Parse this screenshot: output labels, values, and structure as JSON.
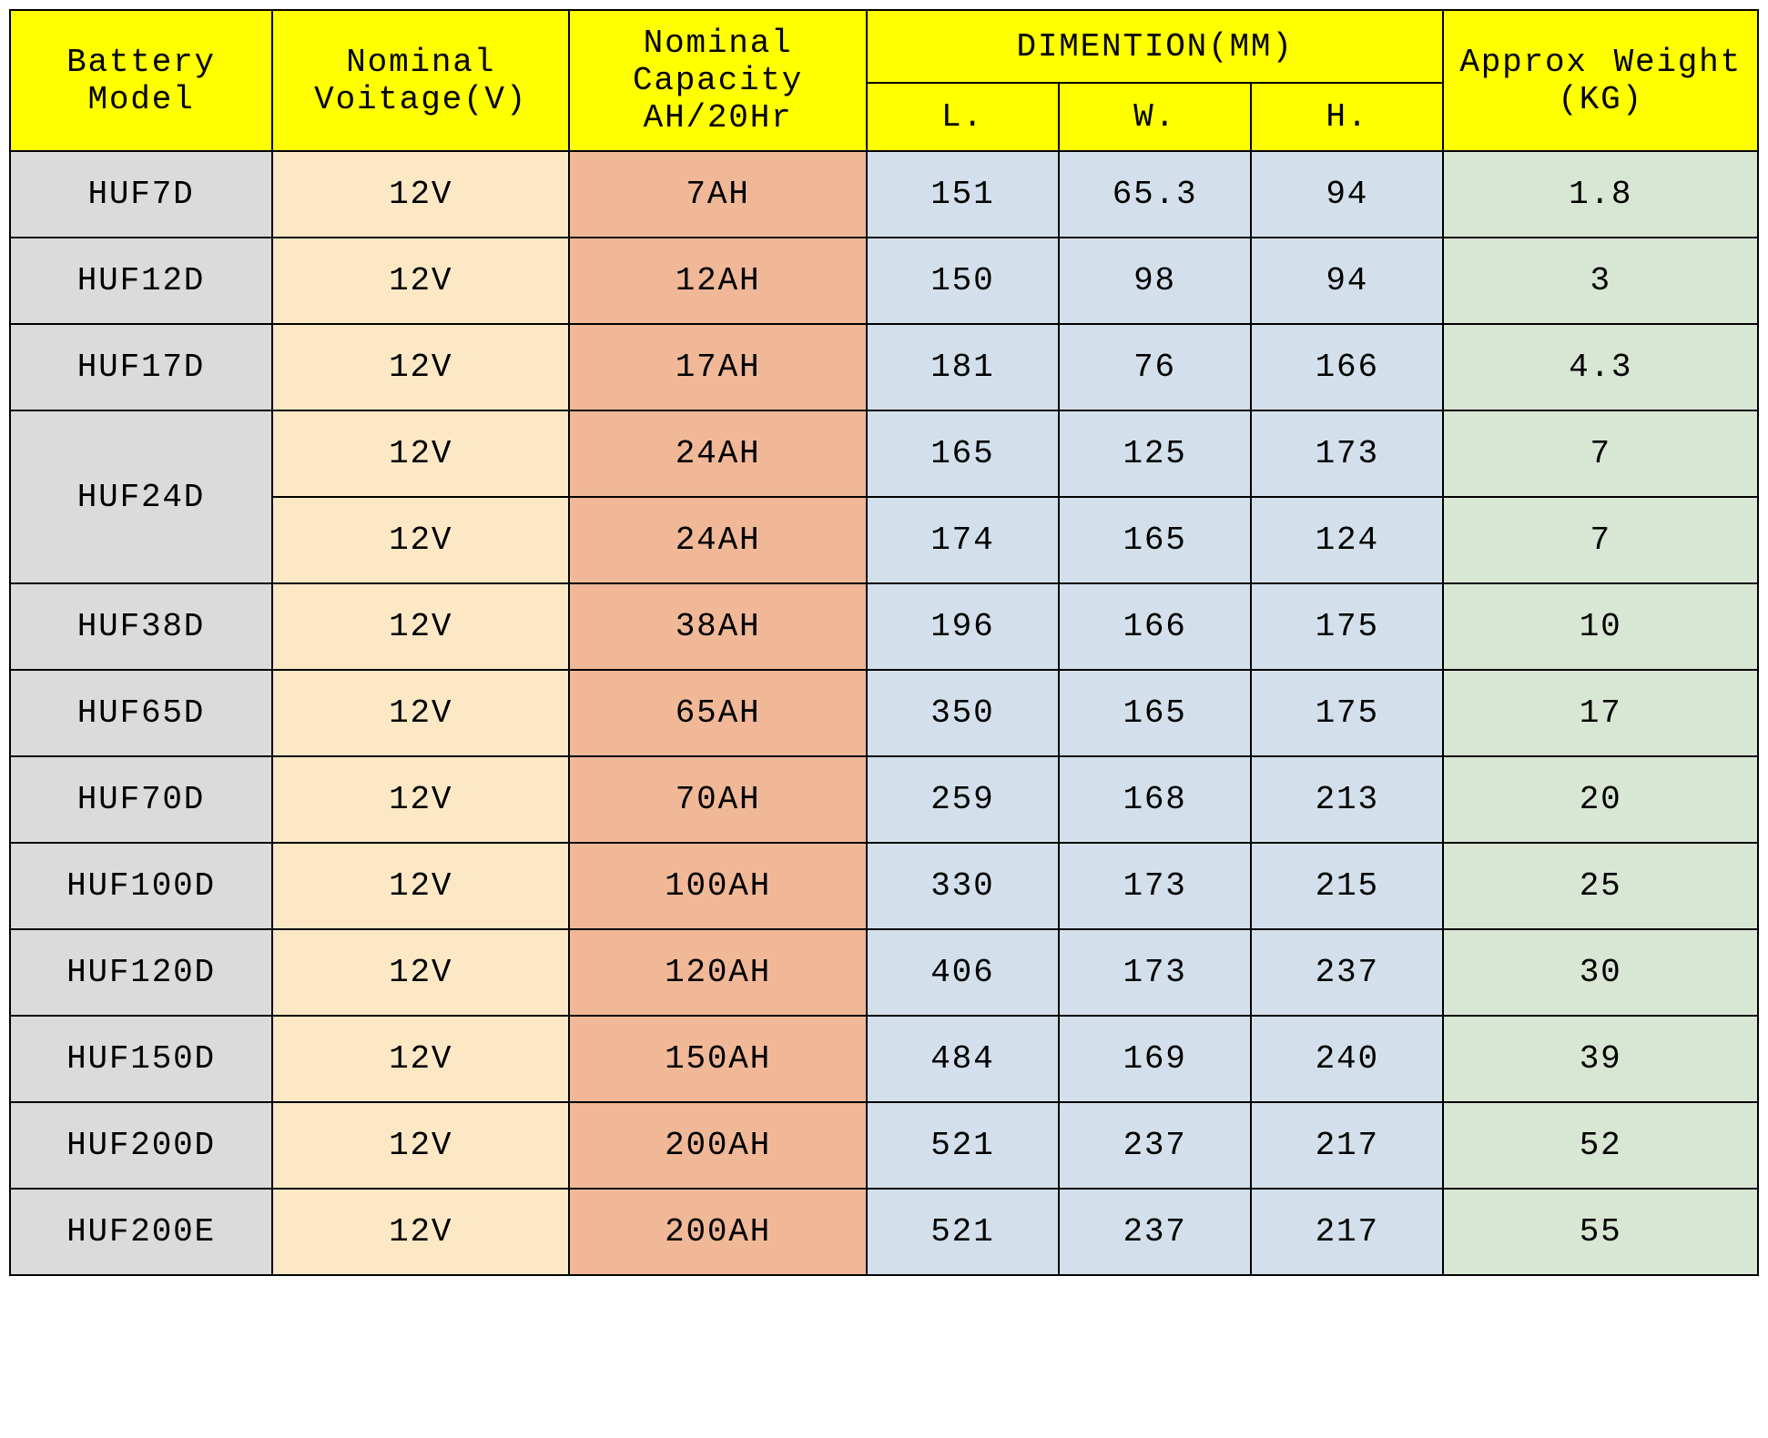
{
  "table": {
    "type": "table",
    "headers": {
      "model": "Battery Model",
      "voltage": "Nominal Voitage(V)",
      "capacity": "Nominal Capacity AH/20Hr",
      "dimension_group": "DIMENTION(MM)",
      "dim_l": "L.",
      "dim_w": "W.",
      "dim_h": "H.",
      "weight": "Approx Weight (KG)"
    },
    "header_bg": "#ffff00",
    "column_colors": {
      "model": "#dbdbdb",
      "voltage": "#fce8c5",
      "capacity": "#f0b897",
      "dimension": "#d3e0eb",
      "weight": "#d8e6d4"
    },
    "border_color": "#000000",
    "font_family": "Courier New, monospace",
    "font_size": 36,
    "column_widths_percent": [
      15,
      17,
      17,
      11,
      11,
      11,
      18
    ],
    "rows": [
      {
        "model": "HUF7D",
        "model_rowspan": 1,
        "voltage": "12V",
        "capacity": "7AH",
        "l": "151",
        "w": "65.3",
        "h": "94",
        "weight": "1.8"
      },
      {
        "model": "HUF12D",
        "model_rowspan": 1,
        "voltage": "12V",
        "capacity": "12AH",
        "l": "150",
        "w": "98",
        "h": "94",
        "weight": "3"
      },
      {
        "model": "HUF17D",
        "model_rowspan": 1,
        "voltage": "12V",
        "capacity": "17AH",
        "l": "181",
        "w": "76",
        "h": "166",
        "weight": "4.3"
      },
      {
        "model": "HUF24D",
        "model_rowspan": 2,
        "voltage": "12V",
        "capacity": "24AH",
        "l": "165",
        "w": "125",
        "h": "173",
        "weight": "7"
      },
      {
        "model": null,
        "model_rowspan": 0,
        "voltage": "12V",
        "capacity": "24AH",
        "l": "174",
        "w": "165",
        "h": "124",
        "weight": "7"
      },
      {
        "model": "HUF38D",
        "model_rowspan": 1,
        "voltage": "12V",
        "capacity": "38AH",
        "l": "196",
        "w": "166",
        "h": "175",
        "weight": "10"
      },
      {
        "model": "HUF65D",
        "model_rowspan": 1,
        "voltage": "12V",
        "capacity": "65AH",
        "l": "350",
        "w": "165",
        "h": "175",
        "weight": "17"
      },
      {
        "model": "HUF70D",
        "model_rowspan": 1,
        "voltage": "12V",
        "capacity": "70AH",
        "l": "259",
        "w": "168",
        "h": "213",
        "weight": "20"
      },
      {
        "model": "HUF100D",
        "model_rowspan": 1,
        "voltage": "12V",
        "capacity": "100AH",
        "l": "330",
        "w": "173",
        "h": "215",
        "weight": "25"
      },
      {
        "model": "HUF120D",
        "model_rowspan": 1,
        "voltage": "12V",
        "capacity": "120AH",
        "l": "406",
        "w": "173",
        "h": "237",
        "weight": "30"
      },
      {
        "model": "HUF150D",
        "model_rowspan": 1,
        "voltage": "12V",
        "capacity": "150AH",
        "l": "484",
        "w": "169",
        "h": "240",
        "weight": "39"
      },
      {
        "model": "HUF200D",
        "model_rowspan": 1,
        "voltage": "12V",
        "capacity": "200AH",
        "l": "521",
        "w": "237",
        "h": "217",
        "weight": "52"
      },
      {
        "model": "HUF200E",
        "model_rowspan": 1,
        "voltage": "12V",
        "capacity": "200AH",
        "l": "521",
        "w": "237",
        "h": "217",
        "weight": "55"
      }
    ]
  }
}
